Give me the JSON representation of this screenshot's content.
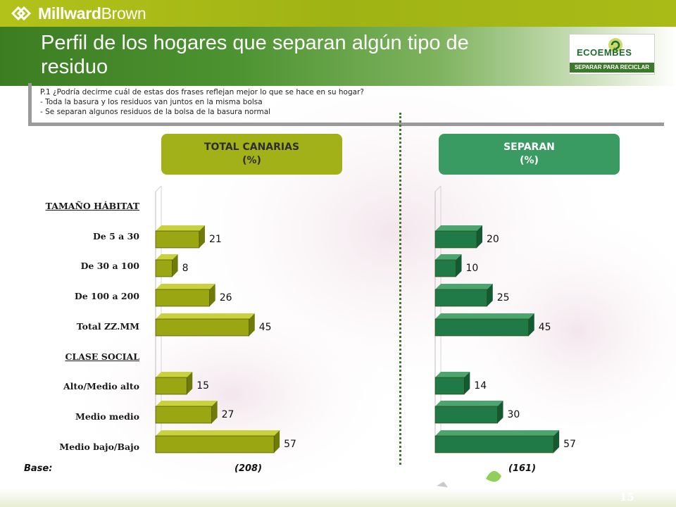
{
  "header": {
    "brand": "MillwardBrown",
    "brand_bold": "Millward",
    "brand_light": "Brown",
    "title": "Perfil de los hogares que separan algún tipo de residuo",
    "logo_name": "ECOEMBES",
    "logo_tag": "SEPARAR PARA RECICLAR"
  },
  "question": {
    "lines": [
      "P.1 ¿Podría decirme cuál de estas dos frases reflejan mejor lo que se hace en su hogar?",
      "- Toda la basura y los residuos van juntos en la misma bolsa",
      "- Se separan algunos residuos de la bolsa de la basura normal"
    ]
  },
  "panels": {
    "left": {
      "title": "TOTAL CANARIAS",
      "unit": "(%)"
    },
    "right": {
      "title": "SEPARAN",
      "unit": "(%)"
    }
  },
  "groups": {
    "habitat": "TAMAÑO HÁBITAT",
    "clase": "CLASE SOCIAL"
  },
  "footer": {
    "base_label": "Base:",
    "base_left": "(208)",
    "base_right": "(161)",
    "page": "15"
  },
  "colors": {
    "left_bar": "#9aa712",
    "right_bar": "#1f7a47",
    "accent": "#a9bb17"
  },
  "chart_data": [
    {
      "type": "bar",
      "orientation": "horizontal",
      "title": "TOTAL CANARIAS (%)",
      "categories": [
        "De 5 a 30",
        "De 30 a 100",
        "De 100 a 200",
        "Total ZZ.MM",
        "Alto/Medio alto",
        "Medio medio",
        "Medio bajo/Bajo"
      ],
      "values": [
        21,
        8,
        26,
        45,
        15,
        27,
        57
      ],
      "base": "(208)",
      "xlim": [
        0,
        60
      ]
    },
    {
      "type": "bar",
      "orientation": "horizontal",
      "title": "SEPARAN (%)",
      "categories": [
        "De 5 a 30",
        "De 30 a 100",
        "De 100 a 200",
        "Total ZZ.MM",
        "Alto/Medio alto",
        "Medio medio",
        "Medio bajo/Bajo"
      ],
      "values": [
        20,
        10,
        25,
        45,
        14,
        30,
        57
      ],
      "base": "(161)",
      "xlim": [
        0,
        60
      ]
    }
  ]
}
